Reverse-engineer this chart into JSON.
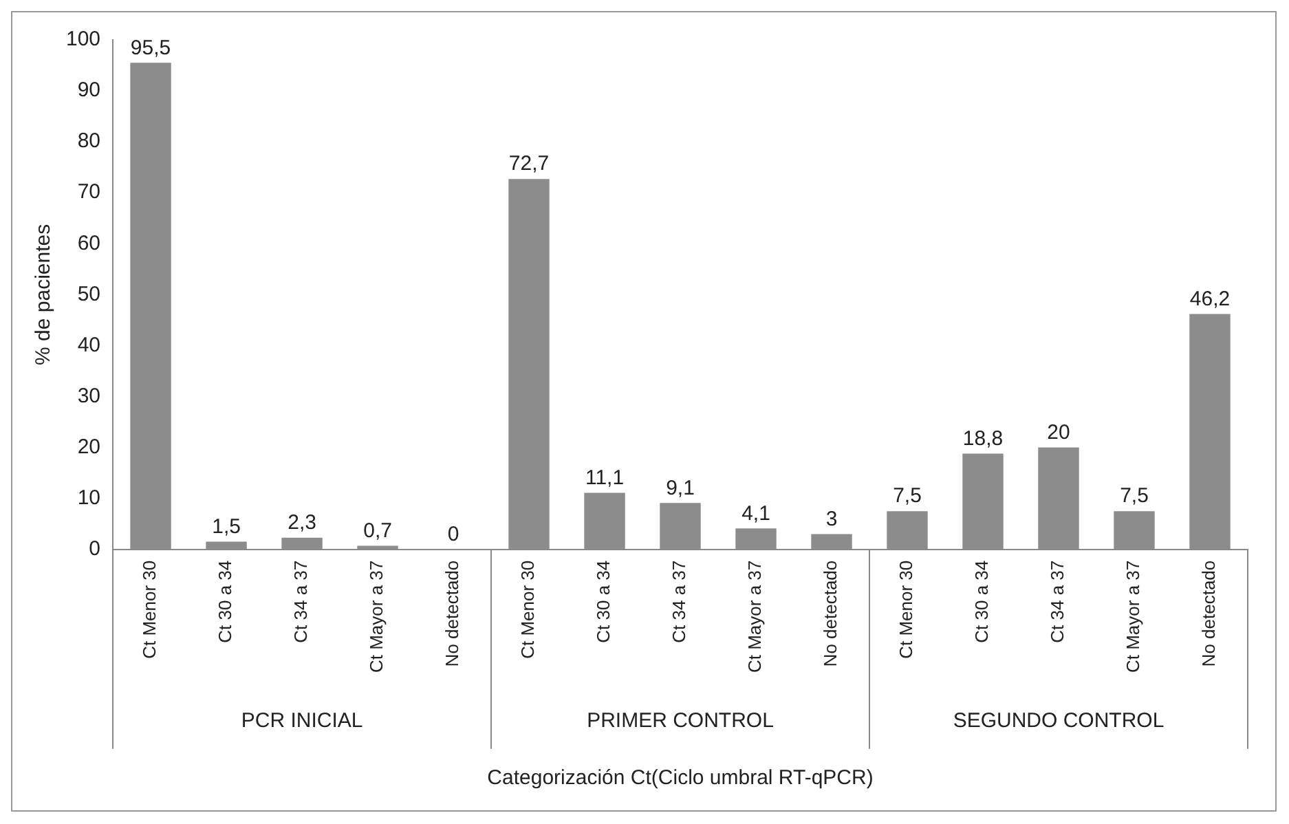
{
  "chart_data": {
    "type": "bar",
    "xlabel": "Categorización Ct(Ciclo umbral RT-qPCR)",
    "ylabel": "% de pacientes",
    "categories": [
      "Ct Menor 30",
      "Ct 30 a 34",
      "Ct 34 a 37",
      "Ct Mayor a 37",
      "No detectado",
      "Ct Menor 30",
      "Ct 30 a 34",
      "Ct 34 a 37",
      "Ct Mayor a 37",
      "No detectado",
      "Ct Menor 30",
      "Ct 30 a 34",
      "Ct 34 a 37",
      "Ct Mayor a 37",
      "No detectado"
    ],
    "values": [
      95.5,
      1.5,
      2.3,
      0.7,
      0,
      72.7,
      11.1,
      9.1,
      4.1,
      3,
      7.5,
      18.8,
      20,
      7.5,
      46.2
    ],
    "color": "#8c8c8c",
    "annotations": [
      "PCR INICIAL",
      "PRIMER CONTROL",
      "SEGUNDO CONTROL"
    ],
    "ylim": [
      0,
      100
    ],
    "yticks": [
      0,
      10,
      20,
      30,
      40,
      50,
      60,
      70,
      80,
      90,
      100
    ],
    "value_labels": [
      "95,5",
      "1,5",
      "2,3",
      "0,7",
      "0",
      "72,7",
      "11,1",
      "9,1",
      "4,1",
      "3",
      "7,5",
      "18,8",
      "20",
      "7,5",
      "46,2"
    ],
    "grid": false,
    "legend": false
  }
}
